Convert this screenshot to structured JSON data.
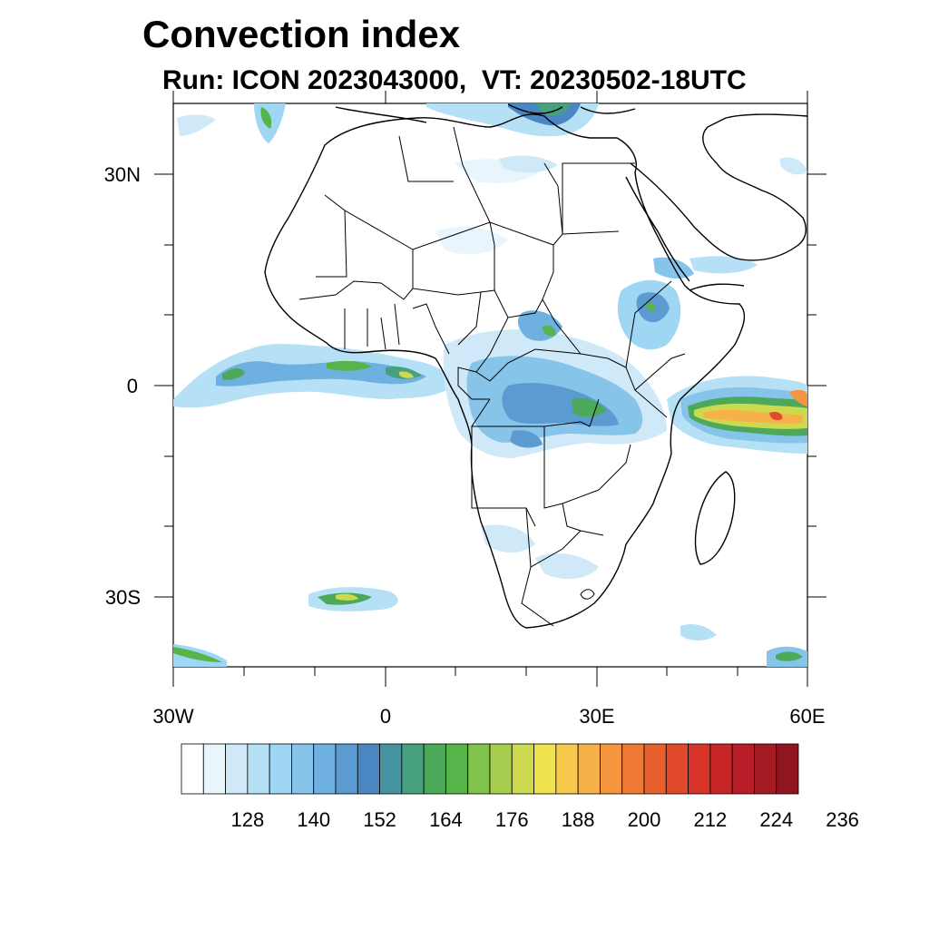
{
  "title": "Convection index",
  "subtitle": "Run: ICON 2023043000,  VT: 20230502-18UTC",
  "map": {
    "type": "map",
    "lon_range": [
      -30,
      60
    ],
    "lat_range": [
      -40,
      40
    ],
    "x_tick_labels": [
      "30W",
      "0",
      "30E",
      "60E"
    ],
    "y_tick_labels": [
      "30N",
      "0",
      "30S"
    ]
  },
  "colorbar": {
    "tick_labels": [
      "128",
      "140",
      "152",
      "164",
      "176",
      "188",
      "200",
      "212",
      "224",
      "236"
    ],
    "colors": [
      "#ffffff",
      "#e8f5fd",
      "#cfe9f8",
      "#b6e0f6",
      "#9fd6f3",
      "#86c4ea",
      "#6eb0e0",
      "#5b9bd2",
      "#4a86c2",
      "#4592a0",
      "#47a07e",
      "#4ca95a",
      "#56b44a",
      "#7fc24d",
      "#a6cd4e",
      "#cdd94f",
      "#f0e24f",
      "#f8c94d",
      "#f6b14b",
      "#f5963f",
      "#ee7a33",
      "#e8602d",
      "#e14a2b",
      "#d83429",
      "#c82528",
      "#b61d26",
      "#a31a23",
      "#8f1620"
    ]
  }
}
